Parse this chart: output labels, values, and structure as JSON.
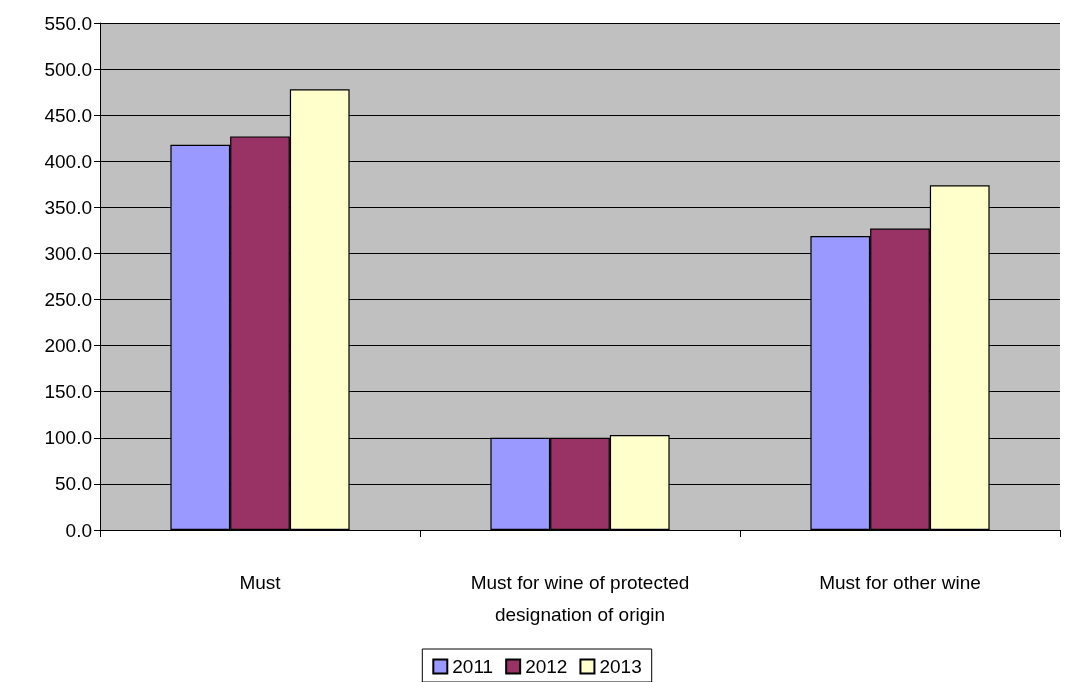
{
  "chart_data": {
    "type": "bar",
    "categories": [
      "Must",
      "Must for wine of protected\ndesignation of origin",
      "Must for other wine"
    ],
    "series": [
      {
        "name": "2011",
        "color": "#9999ff",
        "values": [
          418,
          100,
          319
        ]
      },
      {
        "name": "2012",
        "color": "#993366",
        "values": [
          427,
          100,
          327
        ]
      },
      {
        "name": "2013",
        "color": "#ffffcc",
        "values": [
          478,
          103,
          374
        ]
      }
    ],
    "ylim": [
      0,
      550
    ],
    "yticks": [
      {
        "value": 0,
        "label": "0.0"
      },
      {
        "value": 50,
        "label": "50.0"
      },
      {
        "value": 100,
        "label": "100.0"
      },
      {
        "value": 150,
        "label": "150.0"
      },
      {
        "value": 200,
        "label": "200.0"
      },
      {
        "value": 250,
        "label": "250.0"
      },
      {
        "value": 300,
        "label": "300.0"
      },
      {
        "value": 350,
        "label": "350.0"
      },
      {
        "value": 400,
        "label": "400.0"
      },
      {
        "value": 450,
        "label": "450.0"
      },
      {
        "value": 500,
        "label": "500.0"
      },
      {
        "value": 550,
        "label": "550.0"
      }
    ],
    "grid": "y",
    "legend": "bottom"
  }
}
